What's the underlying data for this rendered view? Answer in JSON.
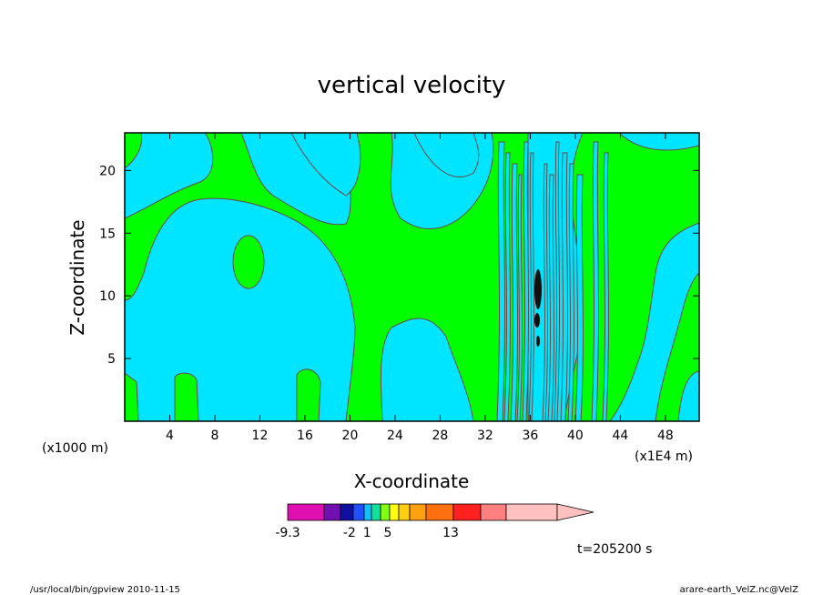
{
  "chart_data": {
    "type": "contour",
    "title": "vertical velocity",
    "xlabel": "X-coordinate",
    "ylabel": "Z-coordinate",
    "x_unit_left": "(x1000 m)",
    "x_unit_right": "(x1E4 m)",
    "xlim": [
      0,
      51
    ],
    "ylim": [
      0,
      23
    ],
    "x_ticks": [
      4,
      8,
      12,
      16,
      20,
      24,
      28,
      32,
      36,
      40,
      44,
      48
    ],
    "y_ticks": [
      5,
      10,
      15,
      20
    ],
    "colorbar": {
      "colors": [
        "#e010b0",
        "#7010b0",
        "#1010a0",
        "#2050ff",
        "#10c0ff",
        "#10e0a0",
        "#80ff10",
        "#ffff10",
        "#ffd010",
        "#ffa010",
        "#ff7010",
        "#ff2020",
        "#ff8080",
        "#ffc0c0"
      ],
      "labels": [
        {
          "value": "-9.3",
          "index": 0
        },
        {
          "value": "-2",
          "index": 2.7
        },
        {
          "value": "1",
          "index": 4.4
        },
        {
          "value": "5",
          "index": 6.8
        },
        {
          "value": "13",
          "index": 10.9
        }
      ]
    },
    "fill_colors": {
      "negative": "#00e5ff",
      "positive": "#00ff00",
      "strong": "#101010"
    }
  },
  "time_label": "t=205200 s",
  "footer_left": "/usr/local/bin/gpview   2010-11-15",
  "footer_right": "arare-earth_VelZ.nc@VelZ"
}
